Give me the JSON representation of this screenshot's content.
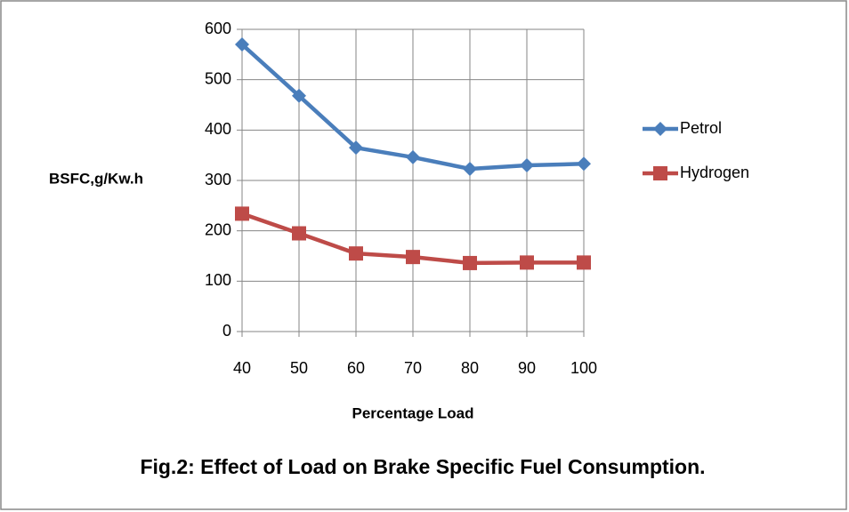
{
  "chart_data": {
    "type": "line",
    "x_label": "Percentage Load",
    "y_label": "BSFC,g/Kw.h",
    "caption": "Fig.2: Effect of Load on Brake Specific Fuel Consumption.",
    "x": [
      40,
      50,
      60,
      70,
      80,
      90,
      100
    ],
    "xlim": [
      40,
      100
    ],
    "xticks": [
      40,
      50,
      60,
      70,
      80,
      90,
      100
    ],
    "ylim": [
      0,
      600
    ],
    "yticks": [
      0,
      100,
      200,
      300,
      400,
      500,
      600
    ],
    "grid": true,
    "legend": "right",
    "series": [
      {
        "name": "Petrol",
        "color": "#4a7ebb",
        "marker": "diamond",
        "values": [
          570,
          468,
          365,
          346,
          323,
          330,
          333
        ]
      },
      {
        "name": "Hydrogen",
        "color": "#be4b48",
        "marker": "square",
        "values": [
          234,
          195,
          155,
          148,
          136,
          137,
          137
        ]
      }
    ]
  }
}
